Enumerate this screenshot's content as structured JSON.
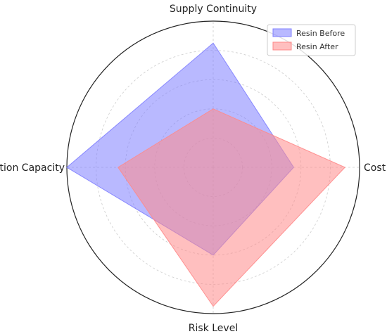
{
  "chart_data": {
    "type": "radar",
    "title": "",
    "axes": [
      "Cost",
      "Supply Continuity",
      "Production Capacity",
      "Risk Level"
    ],
    "series": [
      {
        "name": "Resin Before",
        "values": [
          0.55,
          0.85,
          1.0,
          0.6
        ],
        "color": "#8080ff"
      },
      {
        "name": "Resin After",
        "values": [
          0.9,
          0.4,
          0.65,
          0.95
        ],
        "color": "#ff8a8a"
      }
    ],
    "range": [
      0,
      1
    ],
    "grid": true,
    "legend_position": "top-right"
  }
}
